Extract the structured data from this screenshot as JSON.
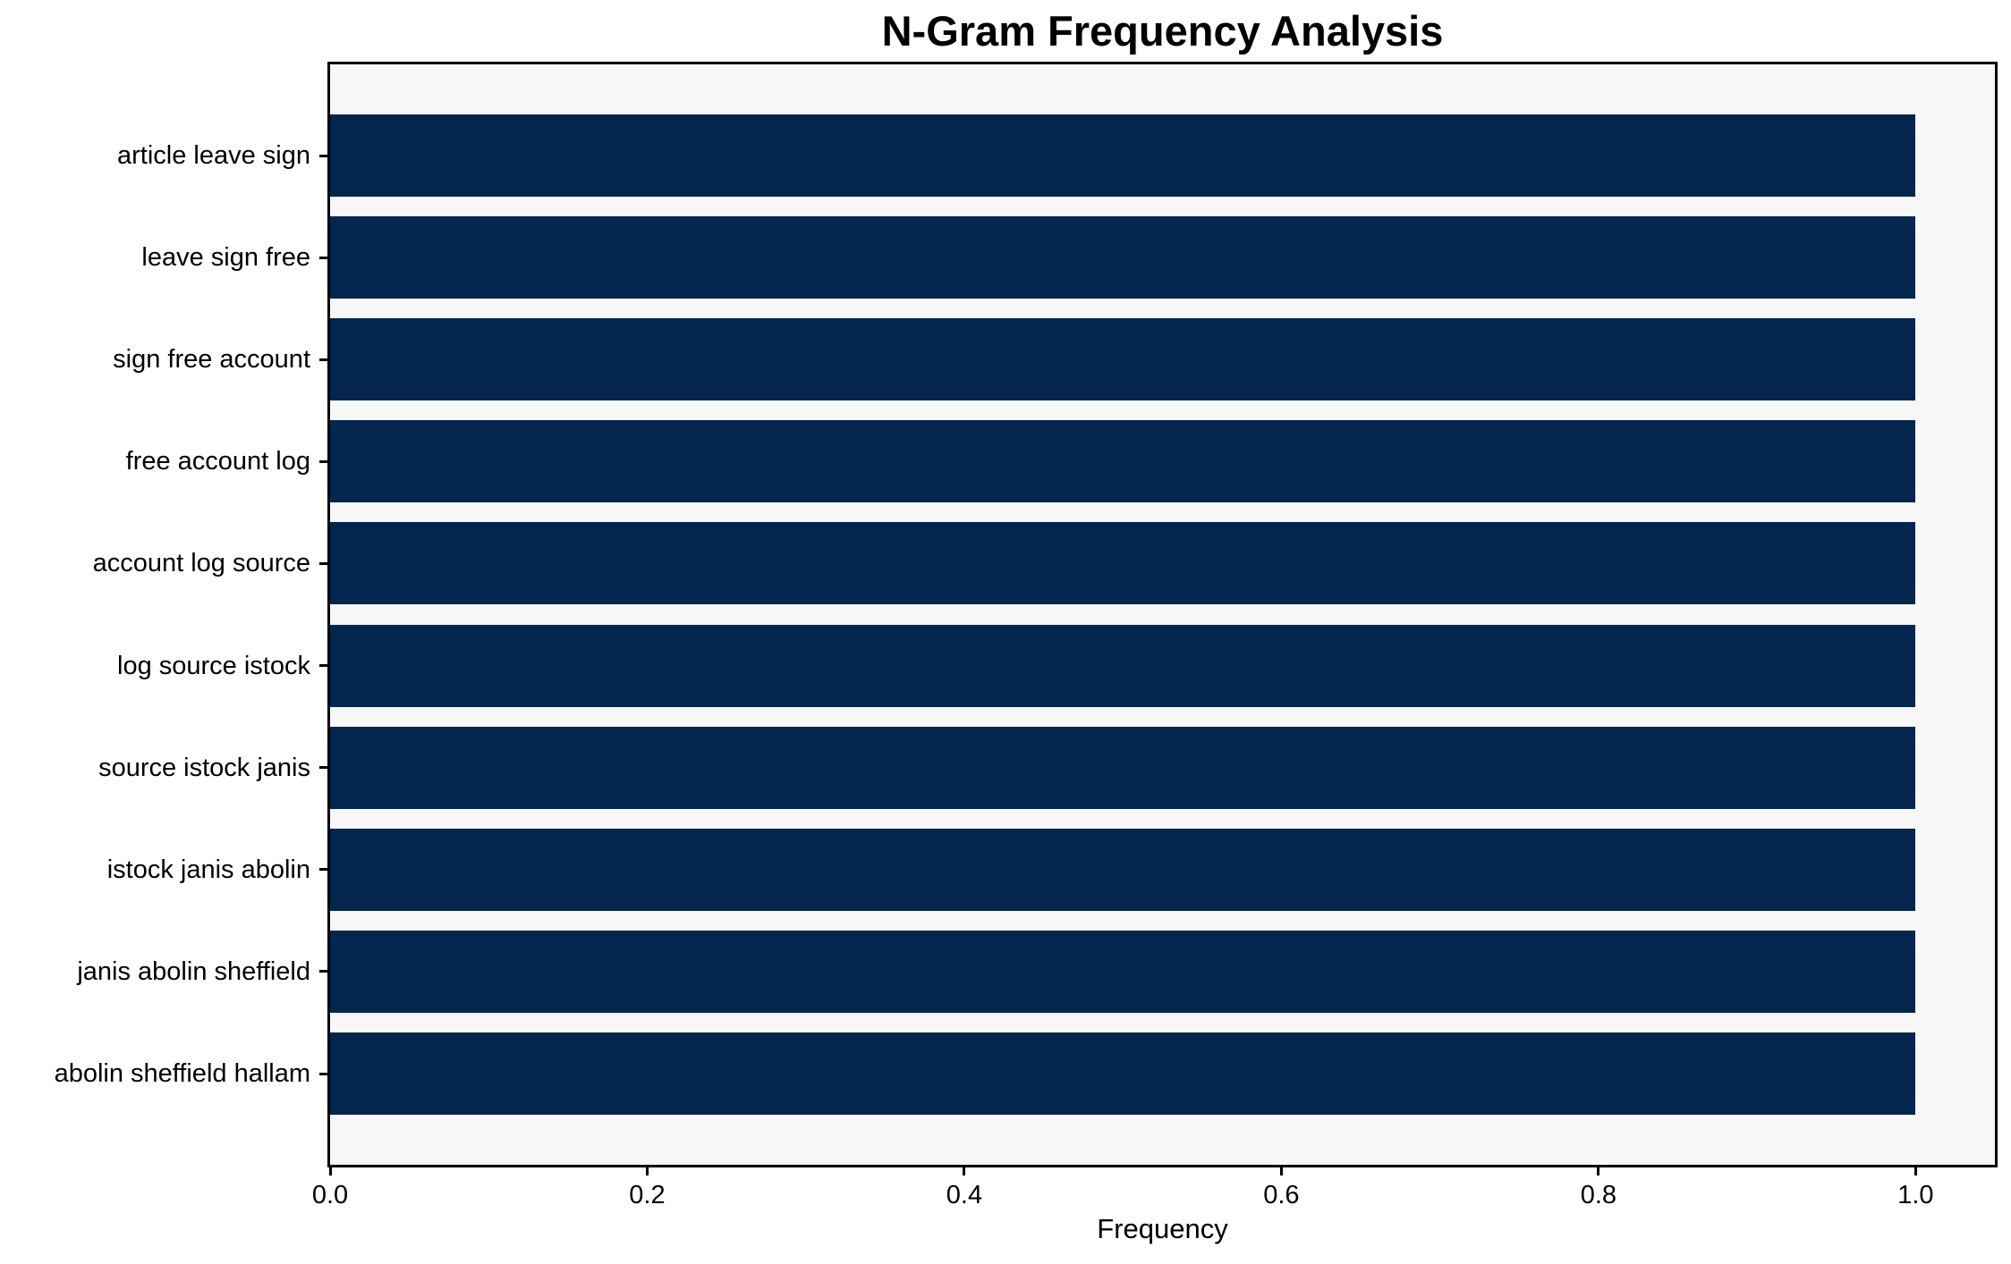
{
  "figure": {
    "title": "N-Gram Frequency Analysis",
    "xlabel": "Frequency"
  },
  "chart_data": {
    "type": "bar",
    "orientation": "horizontal",
    "title": "N-Gram Frequency Analysis",
    "xlabel": "Frequency",
    "ylabel": "",
    "categories": [
      "article leave sign",
      "leave sign free",
      "sign free account",
      "free account log",
      "account log source",
      "log source istock",
      "source istock janis",
      "istock janis abolin",
      "janis abolin sheffield",
      "abolin sheffield hallam"
    ],
    "values": [
      1.0,
      1.0,
      1.0,
      1.0,
      1.0,
      1.0,
      1.0,
      1.0,
      1.0,
      1.0
    ],
    "x_ticks": [
      0.0,
      0.2,
      0.4,
      0.6,
      0.8,
      1.0
    ],
    "x_tick_labels": [
      "0.0",
      "0.2",
      "0.4",
      "0.6",
      "0.8",
      "1.0"
    ],
    "xlim": [
      0,
      1.05
    ],
    "grid": false,
    "legend_position": "none",
    "colors": {
      "bar": "#03254e",
      "plot_background": "#f7f7f7",
      "figure_background": "#ffffff",
      "spine": "#000000",
      "text": "#000000"
    }
  }
}
